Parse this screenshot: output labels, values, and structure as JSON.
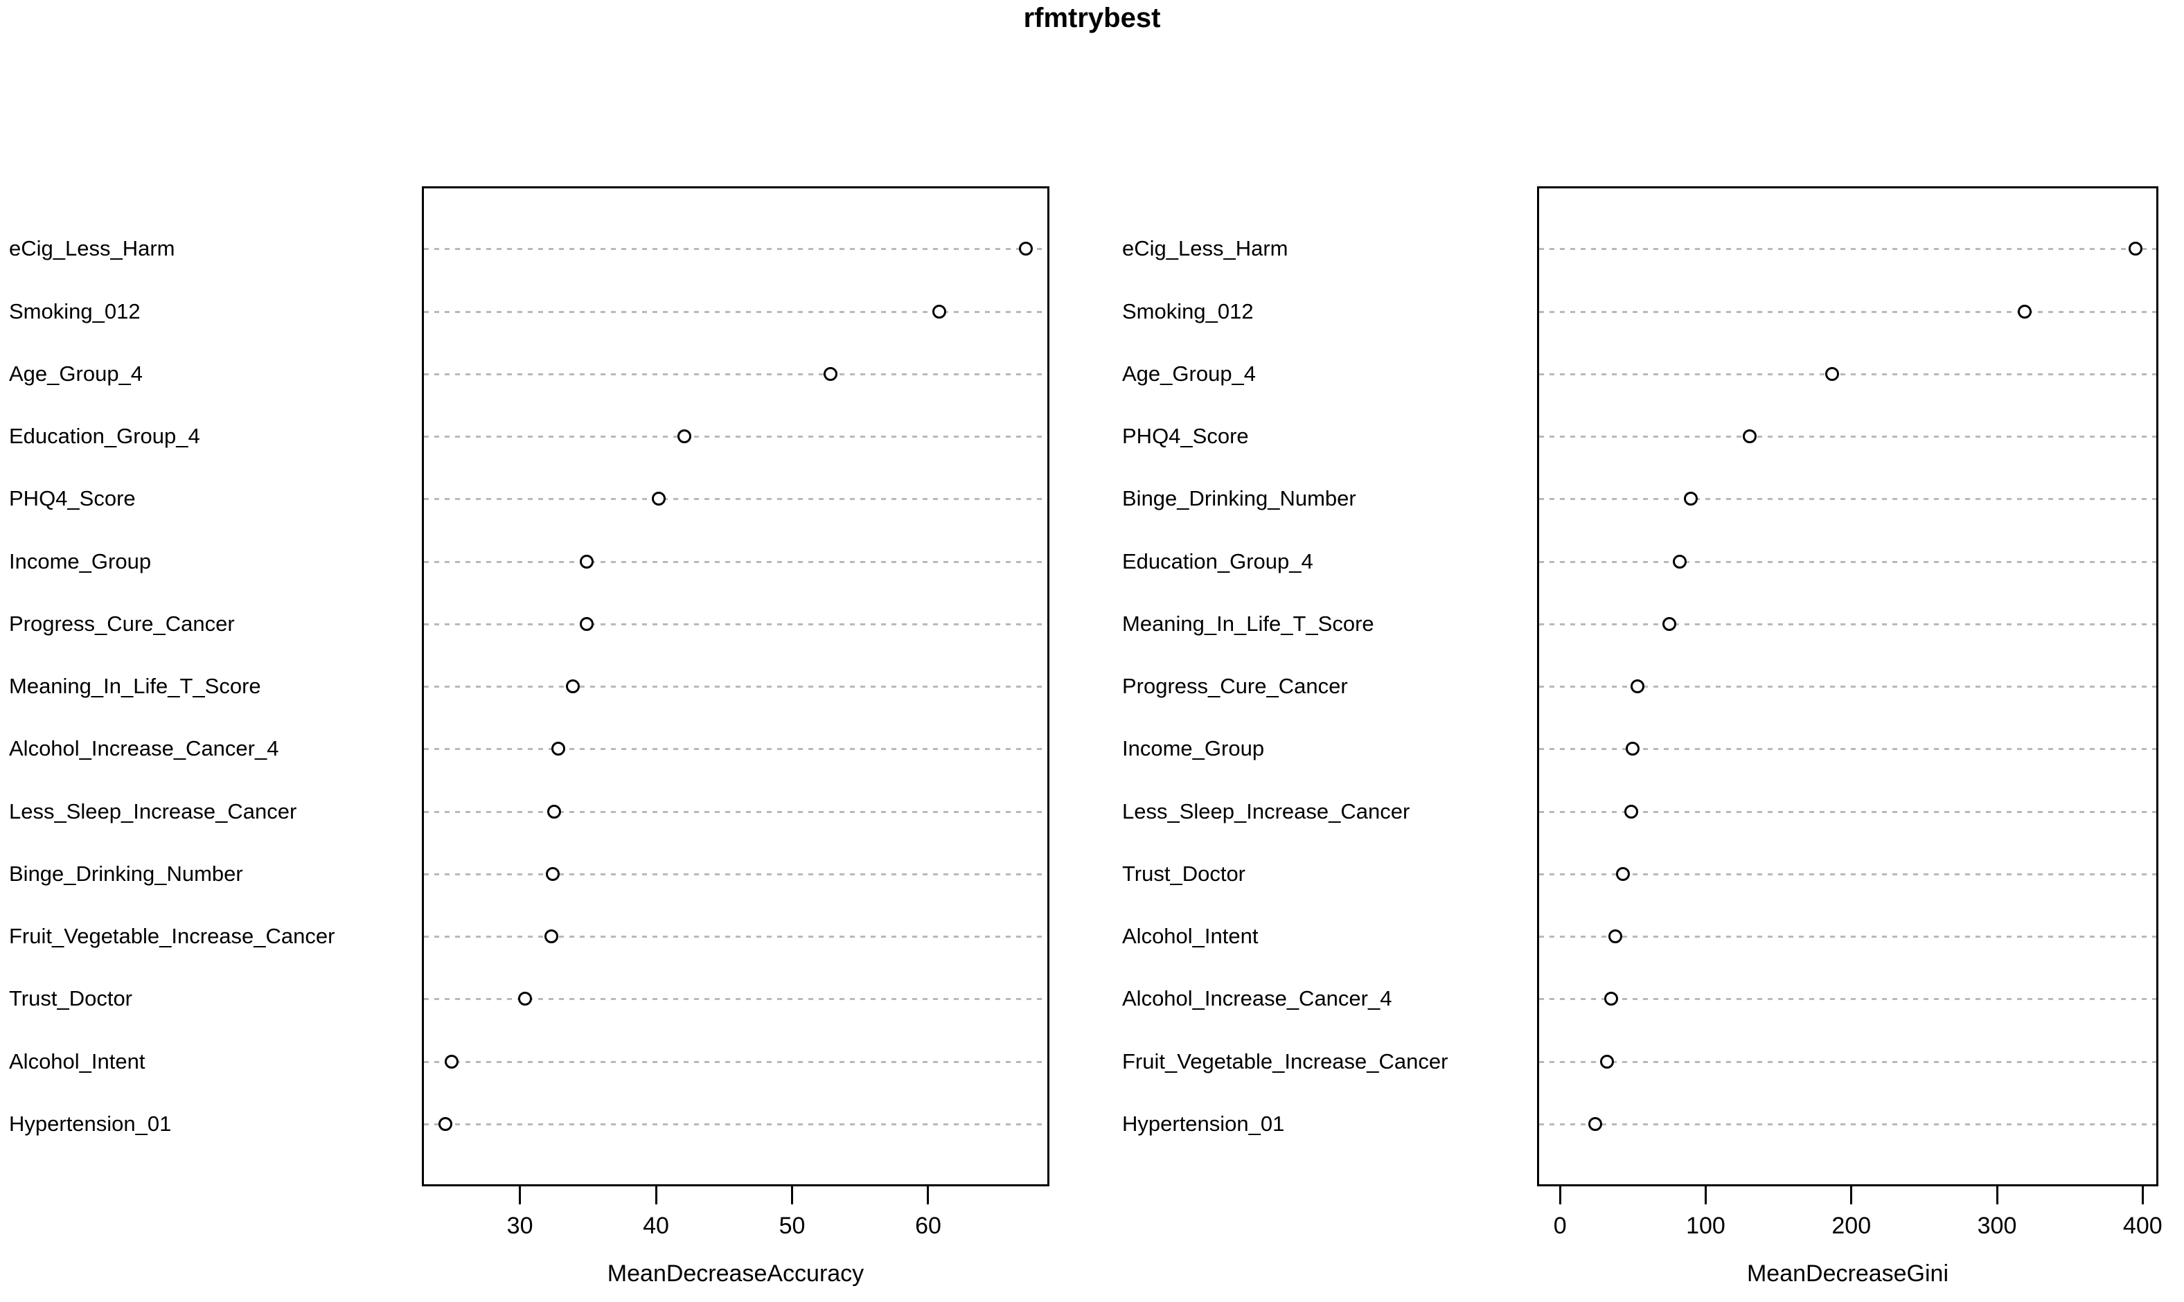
{
  "title": "rfmtrybest",
  "colors": {
    "background": "#ffffff",
    "text": "#000000",
    "axis": "#000000",
    "grid": "#b9b9b9",
    "marker_stroke": "#000000"
  },
  "chart_data": [
    {
      "type": "scatter",
      "subtype": "dotchart",
      "panel": "left",
      "title": "rfmtrybest",
      "xlabel": "MeanDecreaseAccuracy",
      "ylabel": "",
      "order": "top_to_bottom",
      "legend": "none",
      "grid": "horizontal-dotted",
      "marker": "open-circle",
      "xticks": [
        30,
        40,
        50,
        60
      ],
      "xlim": [
        24.5,
        67.2
      ],
      "axis_padding_fraction": 0.04,
      "categories": [
        "eCig_Less_Harm",
        "Smoking_012",
        "Age_Group_4",
        "Education_Group_4",
        "PHQ4_Score",
        "Income_Group",
        "Progress_Cure_Cancer",
        "Meaning_In_Life_T_Score",
        "Alcohol_Increase_Cancer_4",
        "Less_Sleep_Increase_Cancer",
        "Binge_Drinking_Number",
        "Fruit_Vegetable_Increase_Cancer",
        "Trust_Doctor",
        "Alcohol_Intent",
        "Hypertension_01"
      ],
      "values": [
        67.2,
        60.8,
        52.8,
        42.1,
        40.2,
        34.9,
        34.9,
        33.9,
        32.8,
        32.5,
        32.4,
        32.3,
        30.4,
        25.0,
        24.5
      ]
    },
    {
      "type": "scatter",
      "subtype": "dotchart",
      "panel": "right",
      "title": "rfmtrybest",
      "xlabel": "MeanDecreaseGini",
      "ylabel": "",
      "order": "top_to_bottom",
      "legend": "none",
      "grid": "horizontal-dotted",
      "marker": "open-circle",
      "xticks": [
        0,
        100,
        200,
        300,
        400
      ],
      "xlim": [
        0,
        395
      ],
      "axis_padding_fraction": 0.04,
      "categories": [
        "eCig_Less_Harm",
        "Smoking_012",
        "Age_Group_4",
        "PHQ4_Score",
        "Binge_Drinking_Number",
        "Education_Group_4",
        "Meaning_In_Life_T_Score",
        "Progress_Cure_Cancer",
        "Income_Group",
        "Less_Sleep_Increase_Cancer",
        "Trust_Doctor",
        "Alcohol_Intent",
        "Alcohol_Increase_Cancer_4",
        "Fruit_Vegetable_Increase_Cancer",
        "Hypertension_01"
      ],
      "values": [
        395,
        319,
        187,
        130,
        90,
        82,
        75,
        53,
        50,
        49,
        43,
        38,
        35,
        32,
        24
      ]
    }
  ]
}
